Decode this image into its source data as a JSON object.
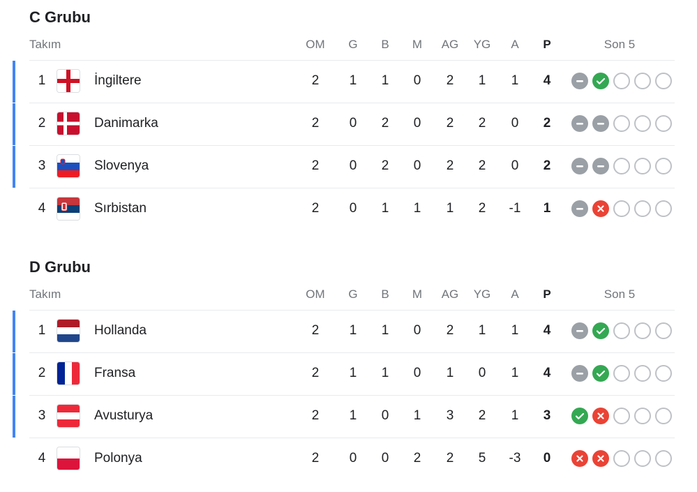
{
  "columns": {
    "team": "Takım",
    "om": "OM",
    "g": "G",
    "b": "B",
    "m": "M",
    "ag": "AG",
    "yg": "YG",
    "a": "A",
    "p": "P",
    "form": "Son 5"
  },
  "colors": {
    "qualify_bar": "#4285f4",
    "win": "#34a853",
    "draw": "#9aa0a6",
    "loss": "#ea4335",
    "empty": "#bdc1c6"
  },
  "groups": [
    {
      "title": "C Grubu",
      "rows": [
        {
          "rank": "1",
          "flag": "england",
          "team": "İngiltere",
          "om": "2",
          "g": "1",
          "b": "1",
          "m": "0",
          "ag": "2",
          "yg": "1",
          "a": "1",
          "p": "4",
          "qualified": true,
          "form": [
            "draw",
            "win",
            "empty",
            "empty",
            "empty"
          ]
        },
        {
          "rank": "2",
          "flag": "denmark",
          "team": "Danimarka",
          "om": "2",
          "g": "0",
          "b": "2",
          "m": "0",
          "ag": "2",
          "yg": "2",
          "a": "0",
          "p": "2",
          "qualified": true,
          "form": [
            "draw",
            "draw",
            "empty",
            "empty",
            "empty"
          ]
        },
        {
          "rank": "3",
          "flag": "slovenia",
          "team": "Slovenya",
          "om": "2",
          "g": "0",
          "b": "2",
          "m": "0",
          "ag": "2",
          "yg": "2",
          "a": "0",
          "p": "2",
          "qualified": true,
          "form": [
            "draw",
            "draw",
            "empty",
            "empty",
            "empty"
          ]
        },
        {
          "rank": "4",
          "flag": "serbia",
          "team": "Sırbistan",
          "om": "2",
          "g": "0",
          "b": "1",
          "m": "1",
          "ag": "1",
          "yg": "2",
          "a": "-1",
          "p": "1",
          "qualified": false,
          "form": [
            "draw",
            "loss",
            "empty",
            "empty",
            "empty"
          ]
        }
      ]
    },
    {
      "title": "D Grubu",
      "rows": [
        {
          "rank": "1",
          "flag": "netherlands",
          "team": "Hollanda",
          "om": "2",
          "g": "1",
          "b": "1",
          "m": "0",
          "ag": "2",
          "yg": "1",
          "a": "1",
          "p": "4",
          "qualified": true,
          "form": [
            "draw",
            "win",
            "empty",
            "empty",
            "empty"
          ]
        },
        {
          "rank": "2",
          "flag": "france",
          "team": "Fransa",
          "om": "2",
          "g": "1",
          "b": "1",
          "m": "0",
          "ag": "1",
          "yg": "0",
          "a": "1",
          "p": "4",
          "qualified": true,
          "form": [
            "draw",
            "win",
            "empty",
            "empty",
            "empty"
          ]
        },
        {
          "rank": "3",
          "flag": "austria",
          "team": "Avusturya",
          "om": "2",
          "g": "1",
          "b": "0",
          "m": "1",
          "ag": "3",
          "yg": "2",
          "a": "1",
          "p": "3",
          "qualified": true,
          "form": [
            "win",
            "loss",
            "empty",
            "empty",
            "empty"
          ]
        },
        {
          "rank": "4",
          "flag": "poland",
          "team": "Polonya",
          "om": "2",
          "g": "0",
          "b": "0",
          "m": "2",
          "ag": "2",
          "yg": "5",
          "a": "-3",
          "p": "0",
          "qualified": false,
          "form": [
            "loss",
            "loss",
            "empty",
            "empty",
            "empty"
          ]
        }
      ]
    }
  ]
}
